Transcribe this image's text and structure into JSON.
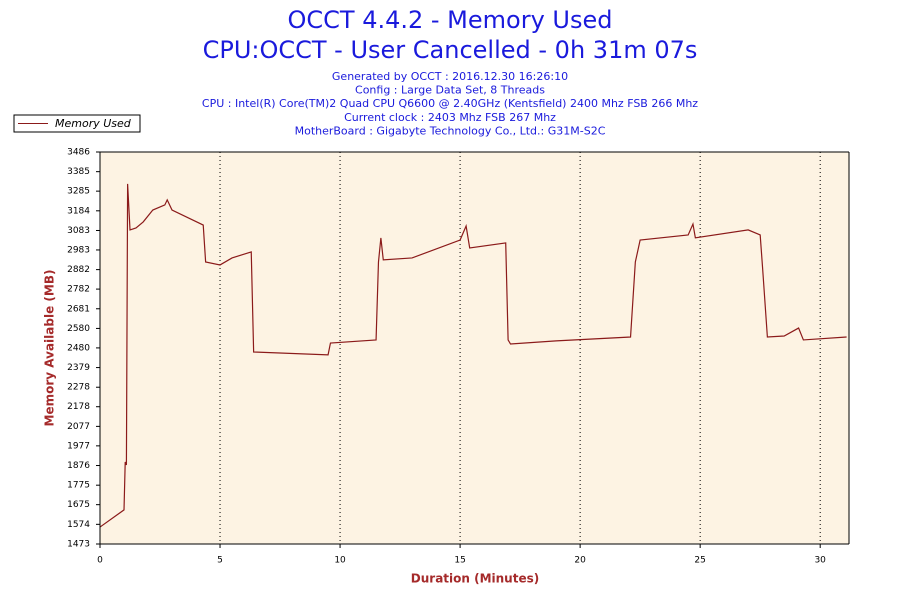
{
  "chart_data": {
    "type": "line",
    "title": "OCCT 4.4.2 - Memory Used",
    "subtitle": "CPU:OCCT - User Cancelled - 0h 31m 07s",
    "annotations": [
      "Generated by OCCT : 2016.12.30 16:26:10",
      "Config : Large Data Set, 8 Threads",
      "CPU : Intel(R) Core(TM)2 Quad CPU Q6600 @ 2.40GHz (Kentsfield) 2400 Mhz FSB 266 Mhz",
      "Current clock : 2403 Mhz FSB 267 Mhz",
      "MotherBoard : Gigabyte Technology Co., Ltd.: G31M-S2C"
    ],
    "x_label": "Duration (Minutes)",
    "y_label": "Memory Available (MB)",
    "x": [
      0,
      1.0,
      1.05,
      1.1,
      1.15,
      1.25,
      1.5,
      1.8,
      2.2,
      2.7,
      2.8,
      3.0,
      4.3,
      4.4,
      5.0,
      5.5,
      6.3,
      6.4,
      9.5,
      9.6,
      11.5,
      11.6,
      11.7,
      11.8,
      13,
      15.0,
      15.25,
      15.4,
      16.9,
      17.0,
      17.1,
      19,
      22.1,
      22.3,
      22.5,
      24.5,
      24.7,
      24.8,
      27,
      27.5,
      27.6,
      27.8,
      28.5,
      29.1,
      29.3,
      31.1
    ],
    "series": [
      {
        "name": "Memory Used",
        "color": "#8b1a1a",
        "values": [
          1560,
          1648,
          1894,
          1879,
          3322,
          3086,
          3096,
          3127,
          3188,
          3214,
          3240,
          3188,
          3111,
          2921,
          2906,
          2942,
          2973,
          2459,
          2444,
          2505,
          2521,
          2921,
          3045,
          2932,
          2942,
          3034,
          3106,
          2993,
          3019,
          2521,
          2500,
          2516,
          2536,
          2921,
          3034,
          3060,
          3116,
          3045,
          3086,
          3060,
          2891,
          2536,
          2541,
          2582,
          2521,
          2536
        ]
      }
    ],
    "xlim": [
      0,
      31.2
    ],
    "xticks": [
      0,
      5,
      10,
      15,
      20,
      25,
      30
    ],
    "ylim": [
      1473,
      3486
    ],
    "yticks": [
      1473,
      1574,
      1675,
      1775,
      1876,
      1977,
      2077,
      2178,
      2278,
      2379,
      2480,
      2580,
      2681,
      2782,
      2882,
      2983,
      3083,
      3184,
      3285,
      3385,
      3486
    ],
    "grid": "x",
    "legend": "top-left"
  }
}
